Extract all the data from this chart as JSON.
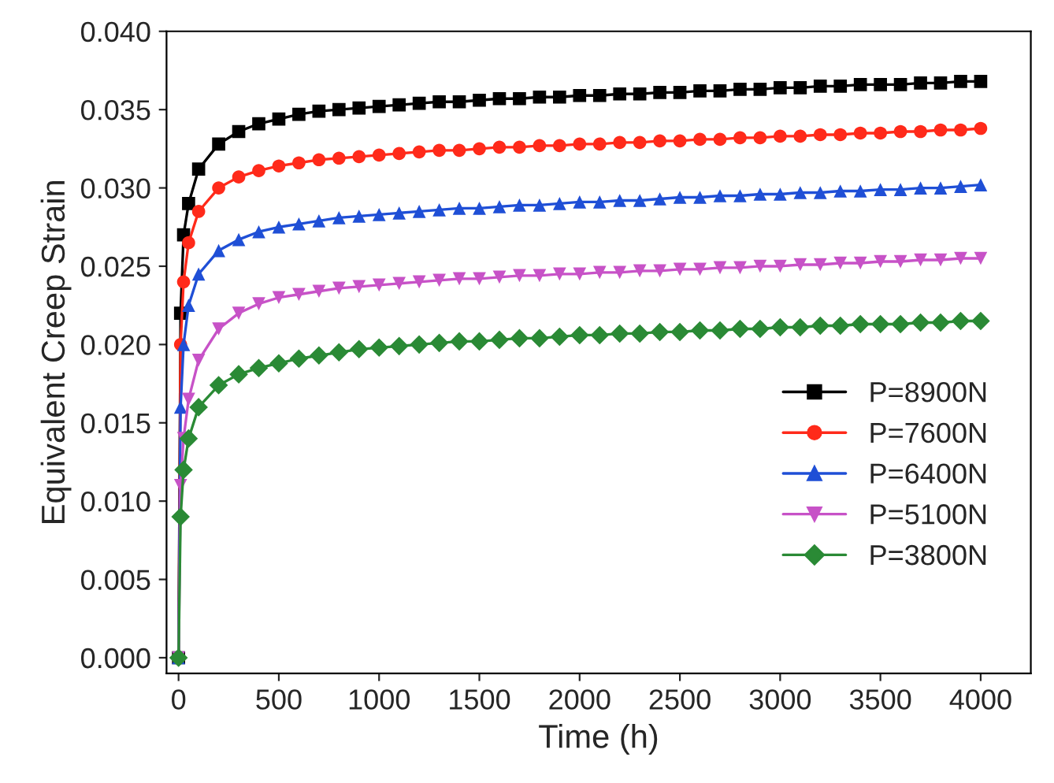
{
  "chart_data": {
    "type": "line",
    "xlabel": "Time (h)",
    "ylabel": "Equivalent Creep Strain",
    "x": [
      0,
      10,
      25,
      50,
      100,
      200,
      300,
      400,
      500,
      600,
      700,
      800,
      900,
      1000,
      1100,
      1200,
      1300,
      1400,
      1500,
      1600,
      1700,
      1800,
      1900,
      2000,
      2100,
      2200,
      2300,
      2400,
      2500,
      2600,
      2700,
      2800,
      2900,
      3000,
      3100,
      3200,
      3300,
      3400,
      3500,
      3600,
      3700,
      3800,
      3900,
      4000
    ],
    "series": [
      {
        "name": "P=8900N",
        "color": "#000000",
        "marker": "square",
        "values": [
          0,
          0.022,
          0.027,
          0.029,
          0.0312,
          0.0328,
          0.0336,
          0.0341,
          0.0344,
          0.0347,
          0.0349,
          0.035,
          0.0351,
          0.0352,
          0.0353,
          0.0354,
          0.0355,
          0.0355,
          0.0356,
          0.0357,
          0.0357,
          0.0358,
          0.0358,
          0.0359,
          0.0359,
          0.036,
          0.036,
          0.0361,
          0.0361,
          0.0362,
          0.0362,
          0.0363,
          0.0363,
          0.0364,
          0.0364,
          0.0365,
          0.0365,
          0.0366,
          0.0366,
          0.0366,
          0.0367,
          0.0367,
          0.0368,
          0.0368
        ]
      },
      {
        "name": "P=7600N",
        "color": "#ff2a1a",
        "marker": "circle",
        "values": [
          0,
          0.02,
          0.024,
          0.0265,
          0.0285,
          0.03,
          0.0307,
          0.0311,
          0.0314,
          0.0316,
          0.0318,
          0.0319,
          0.032,
          0.0321,
          0.0322,
          0.0323,
          0.0324,
          0.0324,
          0.0325,
          0.0326,
          0.0326,
          0.0327,
          0.0327,
          0.0328,
          0.0328,
          0.0329,
          0.0329,
          0.033,
          0.033,
          0.0331,
          0.0331,
          0.0332,
          0.0332,
          0.0333,
          0.0333,
          0.0334,
          0.0334,
          0.0335,
          0.0335,
          0.0336,
          0.0336,
          0.0337,
          0.0337,
          0.0338
        ]
      },
      {
        "name": "P=6400N",
        "color": "#1f4fd6",
        "marker": "triangle",
        "values": [
          0,
          0.016,
          0.02,
          0.0225,
          0.0245,
          0.026,
          0.0267,
          0.0272,
          0.0275,
          0.0277,
          0.0279,
          0.0281,
          0.0282,
          0.0283,
          0.0284,
          0.0285,
          0.0286,
          0.0287,
          0.0287,
          0.0288,
          0.0289,
          0.0289,
          0.029,
          0.0291,
          0.0291,
          0.0292,
          0.0292,
          0.0293,
          0.0294,
          0.0294,
          0.0295,
          0.0295,
          0.0296,
          0.0296,
          0.0297,
          0.0297,
          0.0298,
          0.0298,
          0.0299,
          0.0299,
          0.03,
          0.03,
          0.0301,
          0.0302
        ]
      },
      {
        "name": "P=5100N",
        "color": "#c752c7",
        "marker": "triangle_down",
        "values": [
          0,
          0.011,
          0.014,
          0.0165,
          0.019,
          0.021,
          0.022,
          0.0226,
          0.023,
          0.0232,
          0.0234,
          0.0236,
          0.0237,
          0.0238,
          0.0239,
          0.024,
          0.0241,
          0.0242,
          0.0242,
          0.0243,
          0.0244,
          0.0244,
          0.0245,
          0.0245,
          0.0246,
          0.0246,
          0.0247,
          0.0247,
          0.0248,
          0.0248,
          0.0249,
          0.0249,
          0.025,
          0.025,
          0.0251,
          0.0251,
          0.0252,
          0.0252,
          0.0253,
          0.0253,
          0.0254,
          0.0254,
          0.0255,
          0.0255
        ]
      },
      {
        "name": "P=3800N",
        "color": "#2a8a35",
        "marker": "diamond",
        "values": [
          0,
          0.009,
          0.012,
          0.014,
          0.016,
          0.0174,
          0.0181,
          0.0185,
          0.0188,
          0.0191,
          0.0193,
          0.0195,
          0.0197,
          0.0198,
          0.0199,
          0.02,
          0.0201,
          0.0202,
          0.0202,
          0.0203,
          0.0204,
          0.0204,
          0.0205,
          0.0206,
          0.0206,
          0.0207,
          0.0207,
          0.0208,
          0.0208,
          0.0209,
          0.0209,
          0.021,
          0.021,
          0.0211,
          0.0211,
          0.0212,
          0.0212,
          0.0213,
          0.0213,
          0.0213,
          0.0214,
          0.0214,
          0.0215,
          0.0215
        ]
      }
    ],
    "xlim": [
      -60,
      4250
    ],
    "xticks": [
      0,
      500,
      1000,
      1500,
      2000,
      2500,
      3000,
      3500,
      4000
    ],
    "ylim": [
      -0.001,
      0.04
    ],
    "yticks": [
      {
        "value": 0,
        "label": "0.000"
      },
      {
        "value": 0.005,
        "label": "0.005"
      },
      {
        "value": 0.01,
        "label": "0.010"
      },
      {
        "value": 0.015,
        "label": "0.015"
      },
      {
        "value": 0.02,
        "label": "0.020"
      },
      {
        "value": 0.025,
        "label": "0.025"
      },
      {
        "value": 0.03,
        "label": "0.030"
      },
      {
        "value": 0.035,
        "label": "0.035"
      },
      {
        "value": 0.04,
        "label": "0.040"
      }
    ],
    "legend": "bottom right",
    "grid": false
  }
}
